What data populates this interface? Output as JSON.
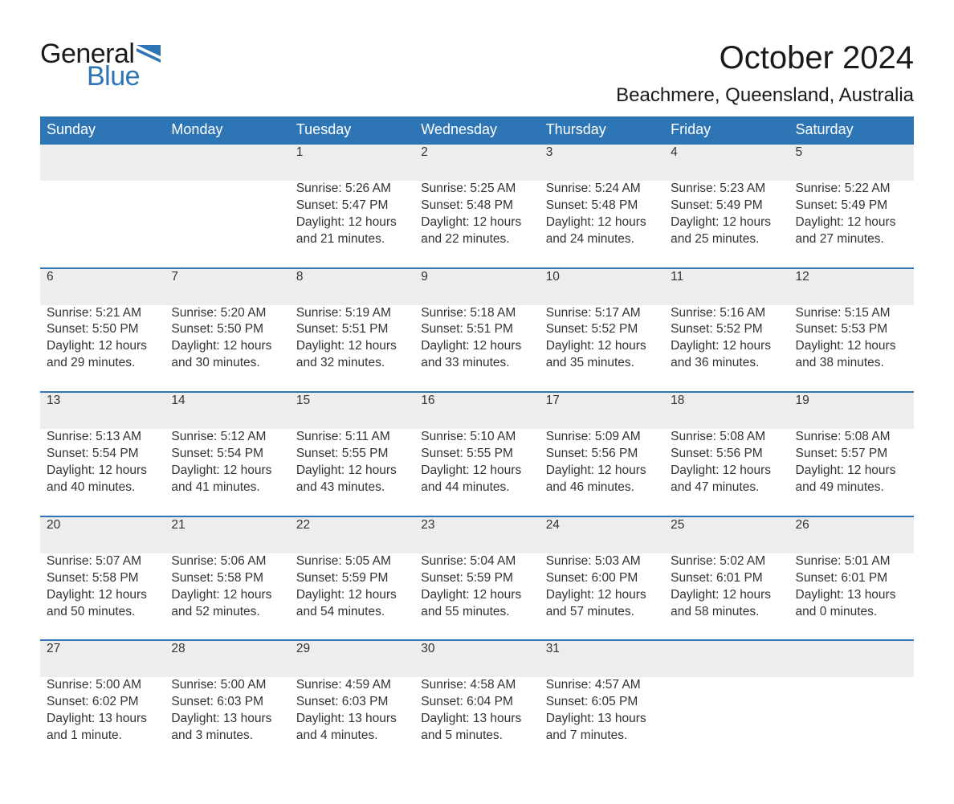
{
  "brand": {
    "word1": "General",
    "word2": "Blue",
    "flag_color": "#2e75b6"
  },
  "title": "October 2024",
  "location": "Beachmere, Queensland, Australia",
  "colors": {
    "header_bg": "#2e75b6",
    "header_fg": "#ffffff",
    "row_divider": "#2e75b6",
    "daynum_bg": "#ededed",
    "text": "#333333",
    "page_bg": "#ffffff"
  },
  "typography": {
    "title_fontsize_pt": 30,
    "location_fontsize_pt": 18,
    "dayheader_fontsize_pt": 14,
    "cell_fontsize_pt": 12
  },
  "day_headers": [
    "Sunday",
    "Monday",
    "Tuesday",
    "Wednesday",
    "Thursday",
    "Friday",
    "Saturday"
  ],
  "weeks": [
    [
      null,
      null,
      {
        "n": "1",
        "sr": "Sunrise: 5:26 AM",
        "ss": "Sunset: 5:47 PM",
        "dl": "Daylight: 12 hours and 21 minutes."
      },
      {
        "n": "2",
        "sr": "Sunrise: 5:25 AM",
        "ss": "Sunset: 5:48 PM",
        "dl": "Daylight: 12 hours and 22 minutes."
      },
      {
        "n": "3",
        "sr": "Sunrise: 5:24 AM",
        "ss": "Sunset: 5:48 PM",
        "dl": "Daylight: 12 hours and 24 minutes."
      },
      {
        "n": "4",
        "sr": "Sunrise: 5:23 AM",
        "ss": "Sunset: 5:49 PM",
        "dl": "Daylight: 12 hours and 25 minutes."
      },
      {
        "n": "5",
        "sr": "Sunrise: 5:22 AM",
        "ss": "Sunset: 5:49 PM",
        "dl": "Daylight: 12 hours and 27 minutes."
      }
    ],
    [
      {
        "n": "6",
        "sr": "Sunrise: 5:21 AM",
        "ss": "Sunset: 5:50 PM",
        "dl": "Daylight: 12 hours and 29 minutes."
      },
      {
        "n": "7",
        "sr": "Sunrise: 5:20 AM",
        "ss": "Sunset: 5:50 PM",
        "dl": "Daylight: 12 hours and 30 minutes."
      },
      {
        "n": "8",
        "sr": "Sunrise: 5:19 AM",
        "ss": "Sunset: 5:51 PM",
        "dl": "Daylight: 12 hours and 32 minutes."
      },
      {
        "n": "9",
        "sr": "Sunrise: 5:18 AM",
        "ss": "Sunset: 5:51 PM",
        "dl": "Daylight: 12 hours and 33 minutes."
      },
      {
        "n": "10",
        "sr": "Sunrise: 5:17 AM",
        "ss": "Sunset: 5:52 PM",
        "dl": "Daylight: 12 hours and 35 minutes."
      },
      {
        "n": "11",
        "sr": "Sunrise: 5:16 AM",
        "ss": "Sunset: 5:52 PM",
        "dl": "Daylight: 12 hours and 36 minutes."
      },
      {
        "n": "12",
        "sr": "Sunrise: 5:15 AM",
        "ss": "Sunset: 5:53 PM",
        "dl": "Daylight: 12 hours and 38 minutes."
      }
    ],
    [
      {
        "n": "13",
        "sr": "Sunrise: 5:13 AM",
        "ss": "Sunset: 5:54 PM",
        "dl": "Daylight: 12 hours and 40 minutes."
      },
      {
        "n": "14",
        "sr": "Sunrise: 5:12 AM",
        "ss": "Sunset: 5:54 PM",
        "dl": "Daylight: 12 hours and 41 minutes."
      },
      {
        "n": "15",
        "sr": "Sunrise: 5:11 AM",
        "ss": "Sunset: 5:55 PM",
        "dl": "Daylight: 12 hours and 43 minutes."
      },
      {
        "n": "16",
        "sr": "Sunrise: 5:10 AM",
        "ss": "Sunset: 5:55 PM",
        "dl": "Daylight: 12 hours and 44 minutes."
      },
      {
        "n": "17",
        "sr": "Sunrise: 5:09 AM",
        "ss": "Sunset: 5:56 PM",
        "dl": "Daylight: 12 hours and 46 minutes."
      },
      {
        "n": "18",
        "sr": "Sunrise: 5:08 AM",
        "ss": "Sunset: 5:56 PM",
        "dl": "Daylight: 12 hours and 47 minutes."
      },
      {
        "n": "19",
        "sr": "Sunrise: 5:08 AM",
        "ss": "Sunset: 5:57 PM",
        "dl": "Daylight: 12 hours and 49 minutes."
      }
    ],
    [
      {
        "n": "20",
        "sr": "Sunrise: 5:07 AM",
        "ss": "Sunset: 5:58 PM",
        "dl": "Daylight: 12 hours and 50 minutes."
      },
      {
        "n": "21",
        "sr": "Sunrise: 5:06 AM",
        "ss": "Sunset: 5:58 PM",
        "dl": "Daylight: 12 hours and 52 minutes."
      },
      {
        "n": "22",
        "sr": "Sunrise: 5:05 AM",
        "ss": "Sunset: 5:59 PM",
        "dl": "Daylight: 12 hours and 54 minutes."
      },
      {
        "n": "23",
        "sr": "Sunrise: 5:04 AM",
        "ss": "Sunset: 5:59 PM",
        "dl": "Daylight: 12 hours and 55 minutes."
      },
      {
        "n": "24",
        "sr": "Sunrise: 5:03 AM",
        "ss": "Sunset: 6:00 PM",
        "dl": "Daylight: 12 hours and 57 minutes."
      },
      {
        "n": "25",
        "sr": "Sunrise: 5:02 AM",
        "ss": "Sunset: 6:01 PM",
        "dl": "Daylight: 12 hours and 58 minutes."
      },
      {
        "n": "26",
        "sr": "Sunrise: 5:01 AM",
        "ss": "Sunset: 6:01 PM",
        "dl": "Daylight: 13 hours and 0 minutes."
      }
    ],
    [
      {
        "n": "27",
        "sr": "Sunrise: 5:00 AM",
        "ss": "Sunset: 6:02 PM",
        "dl": "Daylight: 13 hours and 1 minute."
      },
      {
        "n": "28",
        "sr": "Sunrise: 5:00 AM",
        "ss": "Sunset: 6:03 PM",
        "dl": "Daylight: 13 hours and 3 minutes."
      },
      {
        "n": "29",
        "sr": "Sunrise: 4:59 AM",
        "ss": "Sunset: 6:03 PM",
        "dl": "Daylight: 13 hours and 4 minutes."
      },
      {
        "n": "30",
        "sr": "Sunrise: 4:58 AM",
        "ss": "Sunset: 6:04 PM",
        "dl": "Daylight: 13 hours and 5 minutes."
      },
      {
        "n": "31",
        "sr": "Sunrise: 4:57 AM",
        "ss": "Sunset: 6:05 PM",
        "dl": "Daylight: 13 hours and 7 minutes."
      },
      null,
      null
    ]
  ]
}
